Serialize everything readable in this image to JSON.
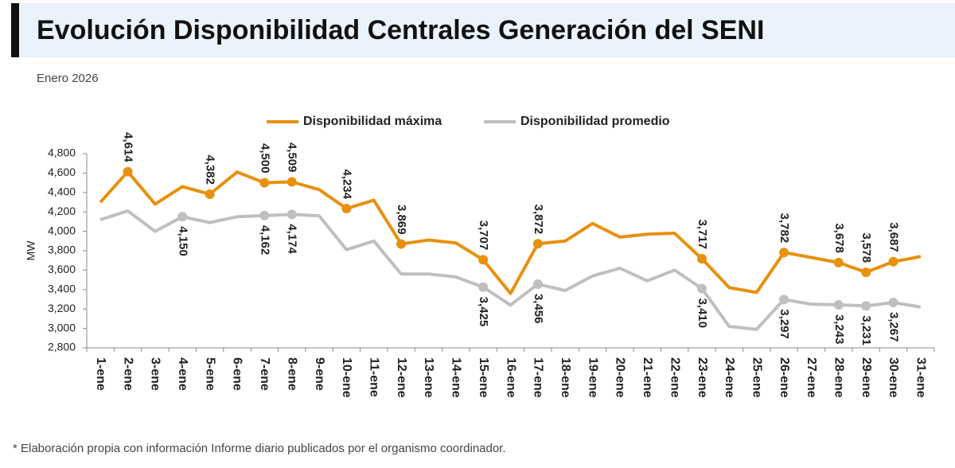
{
  "chart_data": {
    "type": "line",
    "title": "Evolución Disponibilidad Centrales Generación del SENI",
    "subtitle": "Enero 2026",
    "y_label": "MW",
    "footnote": "* Elaboración propia con información Informe diario publicados por el organismo coordinador.",
    "categories": [
      "1-ene",
      "2-ene",
      "3-ene",
      "4-ene",
      "5-ene",
      "6-ene",
      "7-ene",
      "8-ene",
      "9-ene",
      "10-ene",
      "11-ene",
      "12-ene",
      "13-ene",
      "14-ene",
      "15-ene",
      "16-ene",
      "17-ene",
      "18-ene",
      "19-ene",
      "20-ene",
      "21-ene",
      "22-ene",
      "23-ene",
      "24-ene",
      "25-ene",
      "26-ene",
      "27-ene",
      "28-ene",
      "29-ene",
      "30-ene",
      "31-ene"
    ],
    "series": [
      {
        "name": "Disponibilidad máxima",
        "color": "#e8900f",
        "label_side": "above",
        "values": [
          4300,
          4614,
          4280,
          4460,
          4382,
          4610,
          4500,
          4509,
          4430,
          4234,
          4320,
          3869,
          3910,
          3880,
          3707,
          3360,
          3872,
          3900,
          4080,
          3940,
          3970,
          3980,
          3717,
          3420,
          3370,
          3782,
          3730,
          3678,
          3578,
          3687,
          3740
        ],
        "value_labels": [
          null,
          "4,614",
          null,
          null,
          "4,382",
          null,
          "4,500",
          "4,509",
          null,
          "4,234",
          null,
          "3,869",
          null,
          null,
          "3,707",
          null,
          "3,872",
          null,
          null,
          null,
          null,
          null,
          "3,717",
          null,
          null,
          "3,782",
          null,
          "3,678",
          "3,578",
          "3,687",
          null
        ]
      },
      {
        "name": "Disponibilidad promedio",
        "color": "#bfbfbf",
        "label_side": "below",
        "values": [
          4120,
          4210,
          4000,
          4150,
          4090,
          4150,
          4162,
          4174,
          4160,
          3810,
          3900,
          3560,
          3560,
          3530,
          3425,
          3240,
          3456,
          3390,
          3540,
          3620,
          3490,
          3600,
          3410,
          3020,
          2990,
          3297,
          3250,
          3243,
          3231,
          3267,
          3220
        ],
        "value_labels": [
          null,
          null,
          null,
          "4,150",
          null,
          null,
          "4,162",
          "4,174",
          null,
          null,
          null,
          null,
          null,
          null,
          "3,425",
          null,
          "3,456",
          null,
          null,
          null,
          null,
          null,
          "3,410",
          null,
          null,
          "3,297",
          null,
          "3,243",
          "3,231",
          "3,267",
          null
        ]
      }
    ],
    "ylim": [
      2800,
      4800
    ],
    "yticks": [
      {
        "value": 2800,
        "label": "2,800"
      },
      {
        "value": 3000,
        "label": "3,000"
      },
      {
        "value": 3200,
        "label": "3,200"
      },
      {
        "value": 3400,
        "label": "3,400"
      },
      {
        "value": 3600,
        "label": "3,600"
      },
      {
        "value": 3800,
        "label": "3,800"
      },
      {
        "value": 4000,
        "label": "4,000"
      },
      {
        "value": 4200,
        "label": "4,200"
      },
      {
        "value": 4400,
        "label": "4,400"
      },
      {
        "value": 4600,
        "label": "4,600"
      },
      {
        "value": 4800,
        "label": "4,800"
      }
    ],
    "grid": false
  }
}
